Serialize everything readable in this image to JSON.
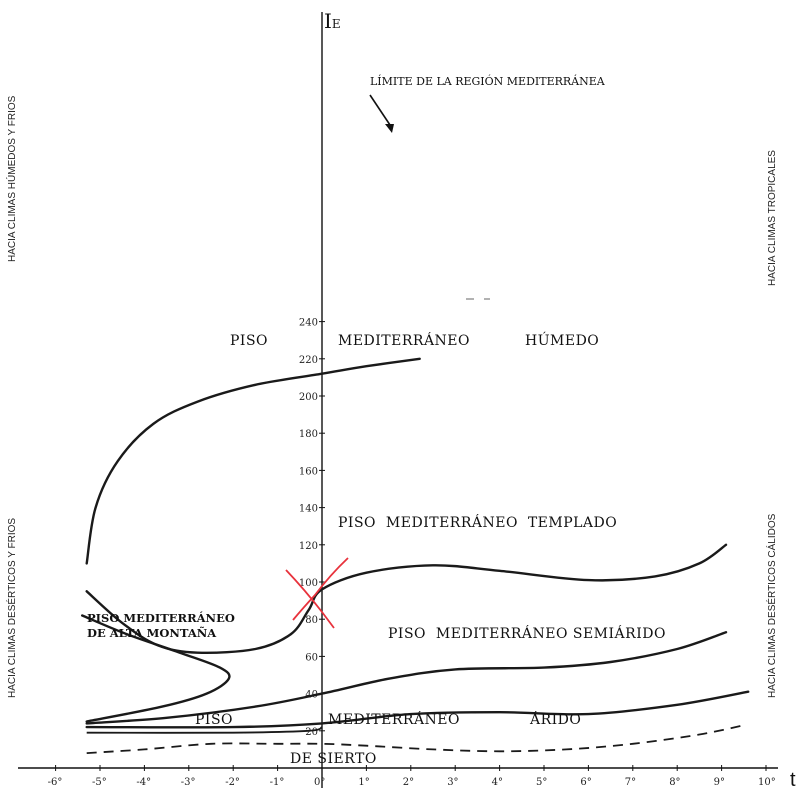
{
  "chart_data": {
    "type": "line",
    "ylabel": "I",
    "ylabel_sub": "E",
    "xlabel": "t",
    "x": [
      "-6°",
      "-5°",
      "-4°",
      "-3°",
      "-2°",
      "-1°",
      "0°",
      "1°",
      "2°",
      "3°",
      "4°",
      "5°",
      "6°",
      "7°",
      "8°",
      "9°",
      "10°"
    ],
    "y_ticks": [
      "20",
      "40",
      "60",
      "80",
      "100",
      "120",
      "140",
      "160",
      "180",
      "200",
      "220",
      "240"
    ],
    "xlim": [
      -6,
      10
    ],
    "ylim": [
      0,
      250
    ],
    "annotations": {
      "limit_label": "LÍMITE DE LA REGIÓN MEDITERRÁNEA",
      "humedo": [
        "PISO",
        "MEDITERRÁNEO",
        "HÚMEDO"
      ],
      "templado": "PISO  MEDITERRÁNEO  TEMPLADO",
      "semiarido": "PISO  MEDITERRÁNEO SEMIÁRIDO",
      "alta_montana": [
        "PISO MEDITERRÁNEO",
        "DE ALTA MONTAÑA"
      ],
      "arido": [
        "PISO",
        "MEDITERRÁNEO",
        "ÁRIDO"
      ],
      "desierto": "DE SIERTO"
    },
    "side_labels": {
      "left_top": "HACIA CLIMAS HÚMEDOS Y FRIOS",
      "left_bottom": "HACIA CLIMAS DESÉRTICOS Y FRIOS",
      "right_top": "HACIA CLIMAS TROPICALES",
      "right_bottom": "HACIA CLIMAS DESÉRTICOS CÁLIDOS"
    },
    "series": [
      {
        "points": [
          [
            -5.3,
            110
          ],
          [
            -5.1,
            140
          ],
          [
            -4.6,
            165
          ],
          [
            -3.8,
            185
          ],
          [
            -2.8,
            197
          ],
          [
            -1.5,
            206
          ],
          [
            0,
            212
          ],
          [
            1,
            216
          ],
          [
            2.2,
            220
          ]
        ]
      },
      {
        "points": [
          [
            -5.3,
            95
          ],
          [
            -4.5,
            78
          ],
          [
            -3.7,
            66
          ],
          [
            -2.8,
            62
          ],
          [
            -1.5,
            64
          ],
          [
            -0.7,
            72
          ],
          [
            -0.3,
            85
          ],
          [
            0,
            96
          ],
          [
            1,
            105
          ],
          [
            2.5,
            109
          ],
          [
            4,
            106
          ],
          [
            6,
            101
          ],
          [
            7.5,
            103
          ],
          [
            8.5,
            110
          ],
          [
            9.1,
            120
          ]
        ]
      },
      {
        "points": [
          [
            -5.4,
            82
          ],
          [
            -4.4,
            72
          ],
          [
            -3.2,
            62
          ],
          [
            -2.3,
            54
          ],
          [
            -2.1,
            48
          ],
          [
            -2.6,
            40
          ],
          [
            -3.6,
            33
          ],
          [
            -5.3,
            25
          ]
        ]
      },
      {
        "points": [
          [
            -5.3,
            24
          ],
          [
            -3.5,
            27
          ],
          [
            -1.5,
            33
          ],
          [
            0,
            40
          ],
          [
            1.5,
            48
          ],
          [
            3,
            53
          ],
          [
            5,
            54
          ],
          [
            6.5,
            57
          ],
          [
            8,
            64
          ],
          [
            9.1,
            73
          ]
        ]
      },
      {
        "points": [
          [
            -5.3,
            22
          ],
          [
            -2,
            22
          ],
          [
            0,
            24
          ],
          [
            2,
            29
          ],
          [
            4,
            30
          ],
          [
            6,
            29
          ],
          [
            8,
            34
          ],
          [
            9.6,
            41
          ]
        ]
      },
      {
        "points": [
          [
            -5.3,
            19
          ],
          [
            -2,
            19
          ],
          [
            -0.3,
            20
          ],
          [
            0,
            22
          ]
        ]
      },
      {
        "dashed": true,
        "points": [
          [
            -5.3,
            8
          ],
          [
            -4,
            10
          ],
          [
            -2.5,
            13
          ],
          [
            -1,
            13
          ],
          [
            0,
            13
          ],
          [
            1,
            12
          ],
          [
            2.5,
            10
          ],
          [
            4,
            9
          ],
          [
            5.5,
            10
          ],
          [
            7,
            13
          ],
          [
            8.5,
            18
          ],
          [
            9.5,
            23
          ]
        ]
      }
    ]
  }
}
